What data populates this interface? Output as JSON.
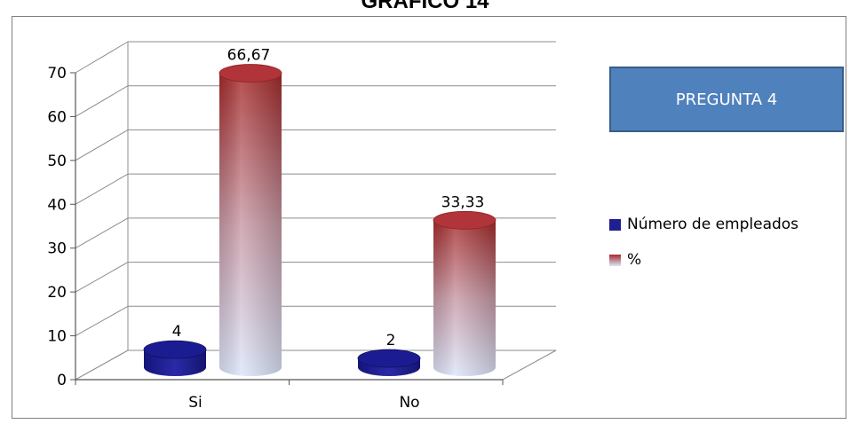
{
  "page": {
    "title": "GRAFICO 14"
  },
  "chart_data": {
    "type": "bar",
    "title": "PREGUNTA 4",
    "categories": [
      "Si",
      "No"
    ],
    "series": [
      {
        "name": "Número de empleados",
        "values": [
          4,
          2
        ],
        "color": "#1f1f8f"
      },
      {
        "name": "%",
        "values": [
          66.67,
          33.33
        ],
        "color": "#b03a3a"
      }
    ],
    "data_labels": [
      [
        "4",
        "2"
      ],
      [
        "66,67",
        "33,33"
      ]
    ],
    "yticks": [
      "0",
      "10",
      "20",
      "30",
      "40",
      "50",
      "60",
      "70"
    ],
    "ylim": [
      0,
      70
    ],
    "grid": true,
    "legend_position": "right",
    "style": "3d-cylinder"
  }
}
